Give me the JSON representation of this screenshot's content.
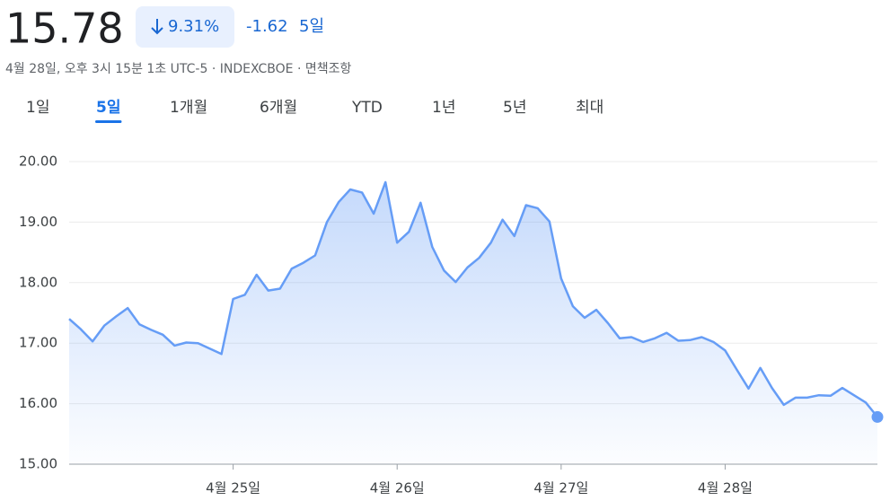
{
  "header": {
    "price": "15.78",
    "change_percent": "9.31%",
    "change_value": "-1.62",
    "change_period": "5일",
    "subtitle": "4월 28일, 오후 3시 15분 1초 UTC-5 · INDEXCBOE · 면책조항"
  },
  "tabs": {
    "items": [
      "1일",
      "5일",
      "1개월",
      "6개월",
      "YTD",
      "1년",
      "5년",
      "최대"
    ],
    "active": 1
  },
  "chart_data": {
    "type": "line",
    "categories": [
      null,
      null,
      null,
      null,
      null,
      null,
      null,
      null,
      null,
      null,
      null,
      null,
      null,
      null,
      "4월 25일",
      null,
      null,
      null,
      null,
      null,
      null,
      null,
      null,
      null,
      null,
      null,
      null,
      null,
      "4월 26일",
      null,
      null,
      null,
      null,
      null,
      null,
      null,
      null,
      null,
      null,
      null,
      null,
      null,
      "4월 27일",
      null,
      null,
      null,
      null,
      null,
      null,
      null,
      null,
      null,
      null,
      null,
      null,
      null,
      "4월 28일",
      null,
      null,
      null,
      null,
      null,
      null,
      null,
      null,
      null,
      null,
      null,
      null,
      null
    ],
    "values": [
      17.4,
      17.23,
      17.03,
      17.29,
      17.44,
      17.58,
      17.31,
      17.22,
      17.14,
      16.96,
      17.01,
      17.0,
      16.91,
      16.82,
      17.73,
      17.8,
      18.13,
      17.87,
      17.9,
      18.23,
      18.33,
      18.45,
      19.0,
      19.33,
      19.54,
      19.49,
      19.14,
      19.66,
      18.66,
      18.84,
      19.32,
      18.59,
      18.2,
      18.01,
      18.25,
      18.41,
      18.66,
      19.04,
      18.77,
      19.28,
      19.23,
      19.01,
      18.07,
      17.61,
      17.42,
      17.55,
      17.33,
      17.08,
      17.1,
      17.02,
      17.08,
      17.17,
      17.04,
      17.05,
      17.1,
      17.02,
      16.88,
      16.56,
      16.25,
      16.59,
      16.26,
      15.98,
      16.1,
      16.1,
      16.14,
      16.13,
      16.26,
      16.14,
      16.02,
      15.78
    ],
    "color": "#669df6",
    "ylim": [
      15,
      20
    ],
    "yticks": [
      {
        "value": 15,
        "label": "15.00"
      },
      {
        "value": 16,
        "label": "16.00"
      },
      {
        "value": 17,
        "label": "17.00"
      },
      {
        "value": 18,
        "label": "18.00"
      },
      {
        "value": 19,
        "label": "19.00"
      },
      {
        "value": 20,
        "label": "20.00"
      }
    ],
    "grid": true
  }
}
